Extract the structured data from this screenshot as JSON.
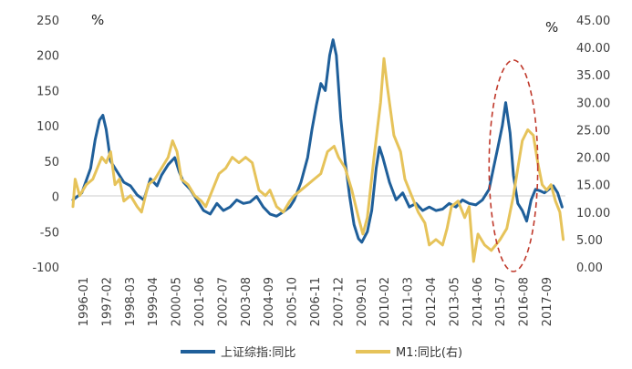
{
  "chart_data": {
    "type": "line",
    "left_axis": {
      "unit_label": "%",
      "ylim": [
        -100,
        250
      ],
      "ticks": [
        "250",
        "200",
        "150",
        "100",
        "50",
        "0",
        "-50",
        "-100"
      ]
    },
    "right_axis": {
      "unit_label": "%",
      "ylim": [
        0,
        45
      ],
      "ticks": [
        "45.00",
        "40.00",
        "35.00",
        "30.00",
        "25.00",
        "20.00",
        "15.00",
        "10.00",
        "5.00",
        "0.00"
      ]
    },
    "x_ticks": [
      "1996-01",
      "1997-02",
      "1998-03",
      "1999-04",
      "2000-05",
      "2001-06",
      "2002-07",
      "2003-08",
      "2004-09",
      "2005-10",
      "2006-11",
      "2007-12",
      "2009-01",
      "2010-02",
      "2011-03",
      "2012-04",
      "2013-05",
      "2014-06",
      "2015-07",
      "2016-08",
      "2017-09"
    ],
    "x_range": [
      1996.0,
      2018.25
    ],
    "series": [
      {
        "name": "上证综指:同比",
        "axis": "left",
        "color": "#1f5f9a",
        "points": [
          [
            1996.0,
            -5
          ],
          [
            1996.4,
            5
          ],
          [
            1996.8,
            40
          ],
          [
            1997.0,
            80
          ],
          [
            1997.2,
            108
          ],
          [
            1997.35,
            115
          ],
          [
            1997.5,
            95
          ],
          [
            1997.7,
            50
          ],
          [
            1998.0,
            35
          ],
          [
            1998.3,
            20
          ],
          [
            1998.6,
            15
          ],
          [
            1998.9,
            2
          ],
          [
            1999.2,
            -5
          ],
          [
            1999.5,
            25
          ],
          [
            1999.8,
            15
          ],
          [
            2000.0,
            30
          ],
          [
            2000.3,
            45
          ],
          [
            2000.6,
            55
          ],
          [
            2000.8,
            35
          ],
          [
            2001.0,
            20
          ],
          [
            2001.3,
            10
          ],
          [
            2001.6,
            -5
          ],
          [
            2001.9,
            -20
          ],
          [
            2002.2,
            -25
          ],
          [
            2002.5,
            -10
          ],
          [
            2002.8,
            -20
          ],
          [
            2003.1,
            -15
          ],
          [
            2003.4,
            -5
          ],
          [
            2003.7,
            -10
          ],
          [
            2004.0,
            -8
          ],
          [
            2004.3,
            0
          ],
          [
            2004.6,
            -15
          ],
          [
            2004.9,
            -25
          ],
          [
            2005.2,
            -28
          ],
          [
            2005.5,
            -22
          ],
          [
            2005.8,
            -15
          ],
          [
            2006.0,
            -5
          ],
          [
            2006.3,
            20
          ],
          [
            2006.6,
            55
          ],
          [
            2006.8,
            95
          ],
          [
            2007.0,
            130
          ],
          [
            2007.2,
            160
          ],
          [
            2007.4,
            150
          ],
          [
            2007.6,
            200
          ],
          [
            2007.75,
            222
          ],
          [
            2007.9,
            200
          ],
          [
            2008.1,
            110
          ],
          [
            2008.3,
            50
          ],
          [
            2008.5,
            0
          ],
          [
            2008.7,
            -40
          ],
          [
            2008.9,
            -60
          ],
          [
            2009.05,
            -65
          ],
          [
            2009.3,
            -50
          ],
          [
            2009.5,
            -20
          ],
          [
            2009.7,
            40
          ],
          [
            2009.85,
            70
          ],
          [
            2010.0,
            55
          ],
          [
            2010.3,
            20
          ],
          [
            2010.6,
            -5
          ],
          [
            2010.9,
            5
          ],
          [
            2011.2,
            -15
          ],
          [
            2011.5,
            -10
          ],
          [
            2011.8,
            -20
          ],
          [
            2012.1,
            -15
          ],
          [
            2012.4,
            -20
          ],
          [
            2012.7,
            -18
          ],
          [
            2013.0,
            -10
          ],
          [
            2013.3,
            -15
          ],
          [
            2013.6,
            -5
          ],
          [
            2013.9,
            -10
          ],
          [
            2014.2,
            -12
          ],
          [
            2014.5,
            -5
          ],
          [
            2014.8,
            10
          ],
          [
            2015.0,
            40
          ],
          [
            2015.2,
            70
          ],
          [
            2015.4,
            100
          ],
          [
            2015.55,
            133
          ],
          [
            2015.75,
            90
          ],
          [
            2015.9,
            30
          ],
          [
            2016.1,
            -10
          ],
          [
            2016.3,
            -20
          ],
          [
            2016.5,
            -35
          ],
          [
            2016.7,
            -5
          ],
          [
            2016.9,
            10
          ],
          [
            2017.1,
            8
          ],
          [
            2017.3,
            5
          ],
          [
            2017.5,
            10
          ],
          [
            2017.7,
            15
          ],
          [
            2017.9,
            5
          ],
          [
            2018.1,
            -15
          ]
        ]
      },
      {
        "name": "M1:同比(右)",
        "axis": "right",
        "color": "#e6c35a",
        "points": [
          [
            1996.0,
            11
          ],
          [
            1996.1,
            16
          ],
          [
            1996.3,
            13
          ],
          [
            1996.6,
            15
          ],
          [
            1996.9,
            16
          ],
          [
            1997.1,
            18
          ],
          [
            1997.3,
            20
          ],
          [
            1997.5,
            19
          ],
          [
            1997.7,
            21
          ],
          [
            1997.9,
            15
          ],
          [
            1998.1,
            16
          ],
          [
            1998.3,
            12
          ],
          [
            1998.6,
            13
          ],
          [
            1998.9,
            11
          ],
          [
            1999.1,
            10
          ],
          [
            1999.4,
            15
          ],
          [
            1999.7,
            16
          ],
          [
            2000.0,
            18
          ],
          [
            2000.3,
            20
          ],
          [
            2000.5,
            23
          ],
          [
            2000.7,
            21
          ],
          [
            2000.9,
            16
          ],
          [
            2001.2,
            15
          ],
          [
            2001.5,
            13
          ],
          [
            2001.8,
            12
          ],
          [
            2002.0,
            11
          ],
          [
            2002.3,
            14
          ],
          [
            2002.6,
            17
          ],
          [
            2002.9,
            18
          ],
          [
            2003.2,
            20
          ],
          [
            2003.5,
            19
          ],
          [
            2003.8,
            20
          ],
          [
            2004.1,
            19
          ],
          [
            2004.4,
            14
          ],
          [
            2004.7,
            13
          ],
          [
            2004.9,
            14
          ],
          [
            2005.2,
            11
          ],
          [
            2005.5,
            10
          ],
          [
            2005.8,
            12
          ],
          [
            2006.0,
            13
          ],
          [
            2006.3,
            14
          ],
          [
            2006.6,
            15
          ],
          [
            2006.9,
            16
          ],
          [
            2007.2,
            17
          ],
          [
            2007.5,
            21
          ],
          [
            2007.8,
            22
          ],
          [
            2008.0,
            20
          ],
          [
            2008.3,
            18
          ],
          [
            2008.6,
            14
          ],
          [
            2008.9,
            9
          ],
          [
            2009.1,
            6
          ],
          [
            2009.3,
            9
          ],
          [
            2009.6,
            20
          ],
          [
            2009.9,
            30
          ],
          [
            2010.05,
            38
          ],
          [
            2010.2,
            33
          ],
          [
            2010.5,
            24
          ],
          [
            2010.8,
            21
          ],
          [
            2011.0,
            16
          ],
          [
            2011.3,
            13
          ],
          [
            2011.6,
            10
          ],
          [
            2011.9,
            8
          ],
          [
            2012.1,
            4
          ],
          [
            2012.4,
            5
          ],
          [
            2012.7,
            4
          ],
          [
            2012.9,
            7
          ],
          [
            2013.1,
            11
          ],
          [
            2013.4,
            12
          ],
          [
            2013.7,
            9
          ],
          [
            2013.9,
            11
          ],
          [
            2014.1,
            1
          ],
          [
            2014.3,
            6
          ],
          [
            2014.6,
            4
          ],
          [
            2014.9,
            3
          ],
          [
            2015.1,
            4
          ],
          [
            2015.3,
            5
          ],
          [
            2015.6,
            7
          ],
          [
            2015.9,
            13
          ],
          [
            2016.1,
            18
          ],
          [
            2016.3,
            23
          ],
          [
            2016.55,
            25
          ],
          [
            2016.8,
            24
          ],
          [
            2017.0,
            19
          ],
          [
            2017.2,
            15
          ],
          [
            2017.4,
            14
          ],
          [
            2017.6,
            15
          ],
          [
            2017.8,
            12
          ],
          [
            2018.0,
            10
          ],
          [
            2018.15,
            5
          ]
        ]
      }
    ],
    "annotation": {
      "shape": "dashed-ellipse",
      "color": "#c0392b",
      "x_from": 2014.8,
      "x_to": 2017.0
    }
  },
  "legend": [
    {
      "label": "上证综指:同比",
      "color": "#1f5f9a"
    },
    {
      "label": "M1:同比(右)",
      "color": "#e6c35a"
    }
  ]
}
